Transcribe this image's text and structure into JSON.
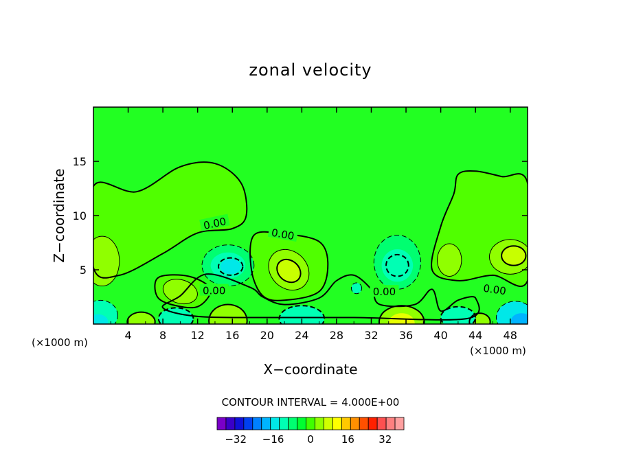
{
  "chart_data": {
    "type": "heatmap",
    "title": "zonal velocity",
    "xlabel": "X−coordinate",
    "ylabel": "Z−coordinate",
    "x_unit_label": "(×1000 m)",
    "y_unit_label": "(×1000 m)",
    "xlim": [
      0,
      50
    ],
    "ylim": [
      0,
      20
    ],
    "x_ticks": [
      "4",
      "8",
      "12",
      "16",
      "20",
      "24",
      "28",
      "32",
      "36",
      "40",
      "44",
      "48"
    ],
    "y_ticks": [
      "5",
      "10",
      "15"
    ],
    "contour_interval_label": "CONTOUR INTERVAL = 4.000E+00",
    "contour_interval": 4.0,
    "contour_line_labels": [
      "0.00",
      "0.00",
      "0.00",
      "0.00",
      "0.00"
    ],
    "colorbar": {
      "tick_labels": [
        "−32",
        "−16",
        "0",
        "16",
        "32"
      ],
      "range": [
        -40,
        40
      ],
      "colors": [
        "#7a00c8",
        "#3a00c8",
        "#1010d8",
        "#0040f0",
        "#0080ff",
        "#00b4ff",
        "#00e8e8",
        "#00ffb4",
        "#00ff70",
        "#00ff30",
        "#40ff00",
        "#90ff00",
        "#d0ff00",
        "#ffff00",
        "#ffc800",
        "#ff9000",
        "#ff5000",
        "#ff2000",
        "#ff5050",
        "#ff8080",
        "#ffa0a0"
      ]
    },
    "background_color": "#22ff22"
  }
}
